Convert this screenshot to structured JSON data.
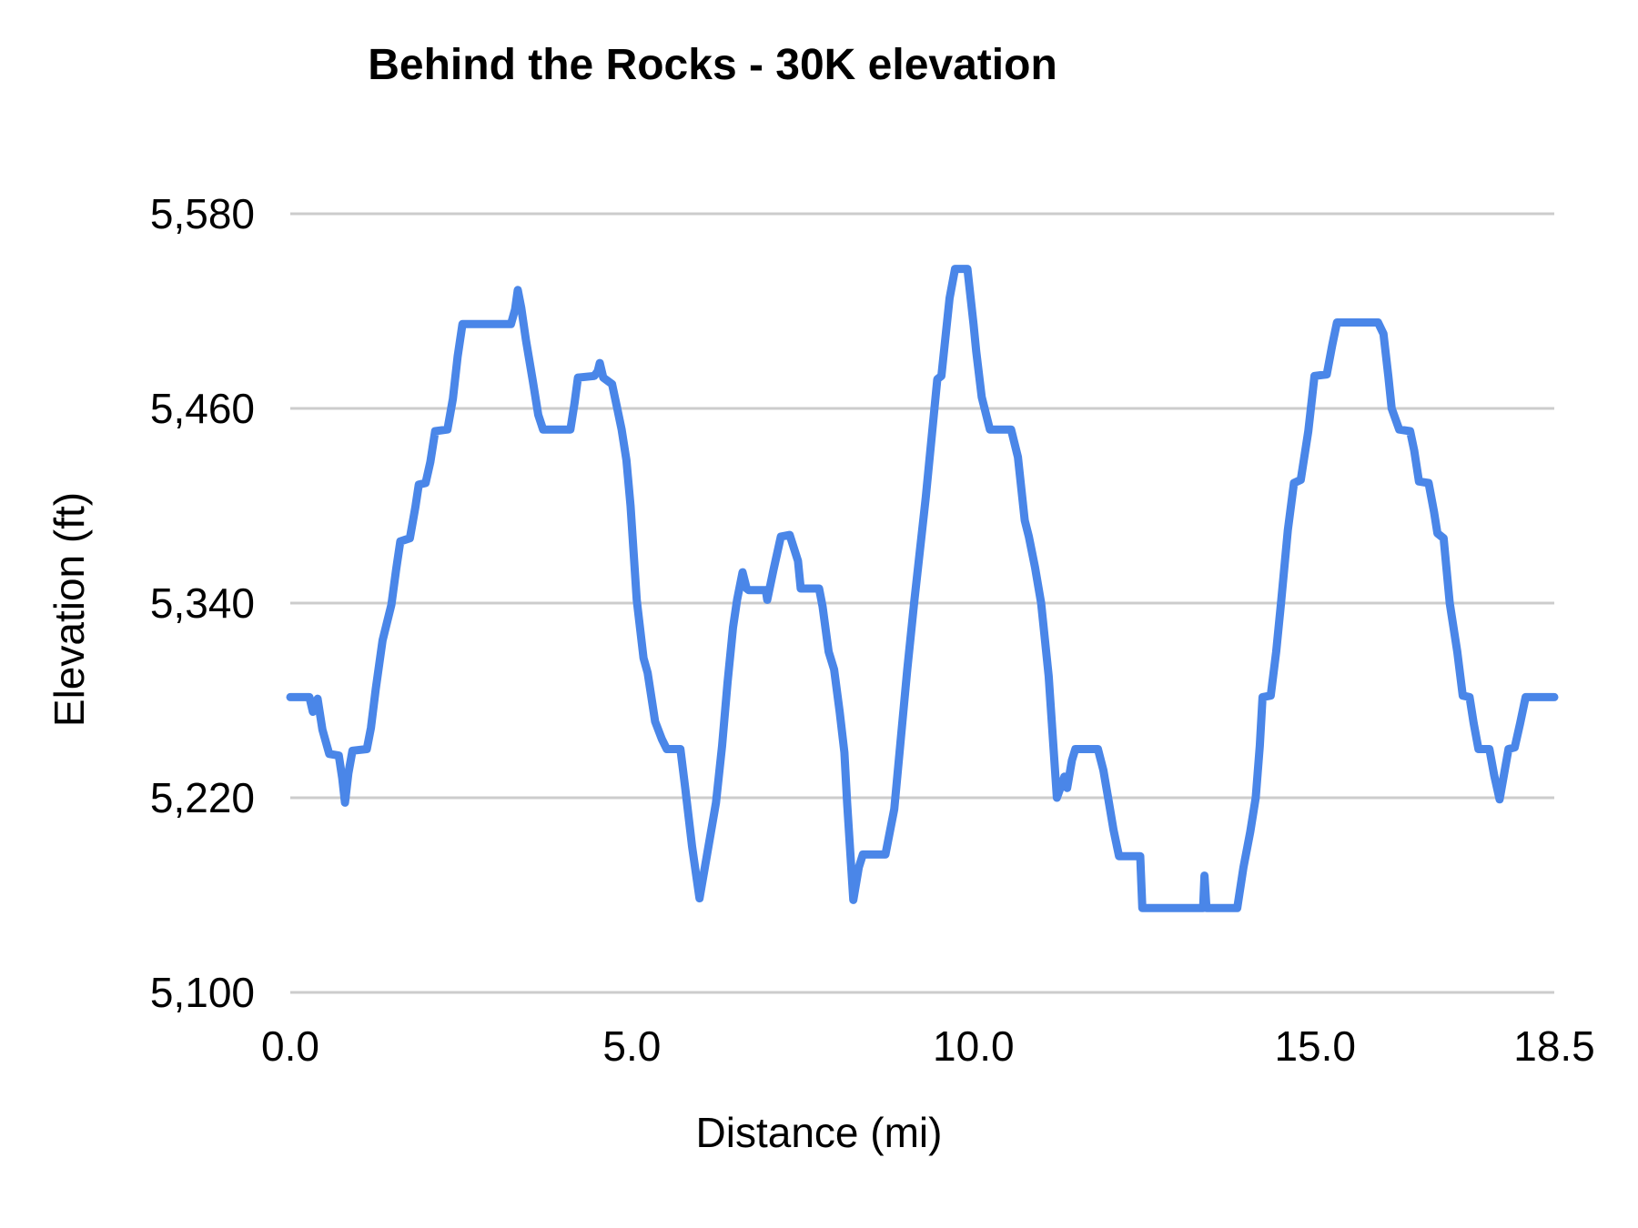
{
  "chart_data": {
    "type": "line",
    "title": "Behind the Rocks - 30K elevation",
    "xlabel": "Distance (mi)",
    "ylabel": "Elevation (ft)",
    "xlim": [
      0.0,
      18.5
    ],
    "ylim": [
      5100,
      5580
    ],
    "grid": "horizontal-only",
    "legend": "none",
    "background_color": "#ffffff",
    "gridline_color": "#cccccc",
    "text_color": "#000000",
    "series_color": "#4a86e8",
    "x_ticks": [
      {
        "value": 0.0,
        "label": "0.0"
      },
      {
        "value": 5.0,
        "label": "5.0"
      },
      {
        "value": 10.0,
        "label": "10.0"
      },
      {
        "value": 15.0,
        "label": "15.0"
      },
      {
        "value": 18.5,
        "label": "18.5"
      }
    ],
    "y_ticks": [
      {
        "value": 5100,
        "label": "5,100"
      },
      {
        "value": 5220,
        "label": "5,220"
      },
      {
        "value": 5340,
        "label": "5,340"
      },
      {
        "value": 5460,
        "label": "5,460"
      },
      {
        "value": 5580,
        "label": "5,580"
      }
    ],
    "series": [
      {
        "name": "Elevation",
        "points": [
          [
            0.0,
            5282
          ],
          [
            0.28,
            5282
          ],
          [
            0.33,
            5273
          ],
          [
            0.4,
            5281
          ],
          [
            0.47,
            5262
          ],
          [
            0.57,
            5247
          ],
          [
            0.71,
            5246
          ],
          [
            0.76,
            5232
          ],
          [
            0.8,
            5217
          ],
          [
            0.85,
            5235
          ],
          [
            0.91,
            5249
          ],
          [
            1.12,
            5250
          ],
          [
            1.18,
            5263
          ],
          [
            1.25,
            5287
          ],
          [
            1.35,
            5317
          ],
          [
            1.48,
            5339
          ],
          [
            1.55,
            5361
          ],
          [
            1.61,
            5378
          ],
          [
            1.75,
            5380
          ],
          [
            1.83,
            5399
          ],
          [
            1.88,
            5413
          ],
          [
            1.98,
            5414
          ],
          [
            2.05,
            5427
          ],
          [
            2.12,
            5446
          ],
          [
            2.3,
            5447
          ],
          [
            2.38,
            5466
          ],
          [
            2.45,
            5492
          ],
          [
            2.52,
            5512
          ],
          [
            3.23,
            5512
          ],
          [
            3.29,
            5521
          ],
          [
            3.33,
            5533
          ],
          [
            3.38,
            5522
          ],
          [
            3.45,
            5502
          ],
          [
            3.55,
            5477
          ],
          [
            3.63,
            5456
          ],
          [
            3.7,
            5447
          ],
          [
            4.1,
            5447
          ],
          [
            4.16,
            5463
          ],
          [
            4.21,
            5479
          ],
          [
            4.45,
            5480
          ],
          [
            4.5,
            5483
          ],
          [
            4.53,
            5488
          ],
          [
            4.58,
            5479
          ],
          [
            4.71,
            5475
          ],
          [
            4.78,
            5461
          ],
          [
            4.85,
            5447
          ],
          [
            4.92,
            5428
          ],
          [
            4.98,
            5400
          ],
          [
            5.07,
            5342
          ],
          [
            5.17,
            5306
          ],
          [
            5.23,
            5297
          ],
          [
            5.34,
            5267
          ],
          [
            5.44,
            5256
          ],
          [
            5.51,
            5250
          ],
          [
            5.71,
            5250
          ],
          [
            5.78,
            5226
          ],
          [
            5.88,
            5190
          ],
          [
            5.99,
            5158
          ],
          [
            6.1,
            5185
          ],
          [
            6.23,
            5217
          ],
          [
            6.32,
            5252
          ],
          [
            6.4,
            5291
          ],
          [
            6.48,
            5325
          ],
          [
            6.54,
            5342
          ],
          [
            6.62,
            5359
          ],
          [
            6.68,
            5349
          ],
          [
            6.71,
            5348
          ],
          [
            6.96,
            5348
          ],
          [
            6.98,
            5342
          ],
          [
            7.07,
            5360
          ],
          [
            7.18,
            5381
          ],
          [
            7.31,
            5382
          ],
          [
            7.43,
            5366
          ],
          [
            7.47,
            5349
          ],
          [
            7.74,
            5349
          ],
          [
            7.79,
            5338
          ],
          [
            7.88,
            5310
          ],
          [
            7.96,
            5299
          ],
          [
            8.04,
            5273
          ],
          [
            8.11,
            5248
          ],
          [
            8.15,
            5217
          ],
          [
            8.24,
            5157
          ],
          [
            8.32,
            5177
          ],
          [
            8.38,
            5185
          ],
          [
            8.71,
            5185
          ],
          [
            8.84,
            5213
          ],
          [
            8.93,
            5254
          ],
          [
            9.03,
            5299
          ],
          [
            9.13,
            5340
          ],
          [
            9.3,
            5405
          ],
          [
            9.47,
            5478
          ],
          [
            9.53,
            5480
          ],
          [
            9.65,
            5528
          ],
          [
            9.73,
            5546
          ],
          [
            9.91,
            5546
          ],
          [
            10.0,
            5512
          ],
          [
            10.04,
            5495
          ],
          [
            10.12,
            5467
          ],
          [
            10.24,
            5447
          ],
          [
            10.55,
            5447
          ],
          [
            10.65,
            5430
          ],
          [
            10.75,
            5391
          ],
          [
            10.81,
            5381
          ],
          [
            10.9,
            5362
          ],
          [
            10.99,
            5340
          ],
          [
            11.1,
            5295
          ],
          [
            11.22,
            5220
          ],
          [
            11.33,
            5233
          ],
          [
            11.37,
            5226
          ],
          [
            11.44,
            5243
          ],
          [
            11.49,
            5250
          ],
          [
            11.82,
            5250
          ],
          [
            11.9,
            5237
          ],
          [
            11.97,
            5220
          ],
          [
            12.05,
            5200
          ],
          [
            12.13,
            5184
          ],
          [
            12.44,
            5184
          ],
          [
            12.47,
            5152
          ],
          [
            13.36,
            5152
          ],
          [
            13.38,
            5172
          ],
          [
            13.41,
            5152
          ],
          [
            13.86,
            5152
          ],
          [
            13.95,
            5177
          ],
          [
            14.05,
            5199
          ],
          [
            14.13,
            5220
          ],
          [
            14.19,
            5252
          ],
          [
            14.23,
            5282
          ],
          [
            14.35,
            5283
          ],
          [
            14.43,
            5310
          ],
          [
            14.5,
            5340
          ],
          [
            14.6,
            5385
          ],
          [
            14.69,
            5414
          ],
          [
            14.79,
            5416
          ],
          [
            14.9,
            5446
          ],
          [
            14.99,
            5480
          ],
          [
            15.17,
            5481
          ],
          [
            15.25,
            5499
          ],
          [
            15.32,
            5513
          ],
          [
            15.92,
            5513
          ],
          [
            16.0,
            5506
          ],
          [
            16.07,
            5480
          ],
          [
            16.12,
            5460
          ],
          [
            16.23,
            5447
          ],
          [
            16.39,
            5446
          ],
          [
            16.45,
            5434
          ],
          [
            16.52,
            5415
          ],
          [
            16.66,
            5414
          ],
          [
            16.74,
            5396
          ],
          [
            16.79,
            5383
          ],
          [
            16.88,
            5380
          ],
          [
            16.97,
            5340
          ],
          [
            17.08,
            5310
          ],
          [
            17.16,
            5283
          ],
          [
            17.26,
            5282
          ],
          [
            17.32,
            5266
          ],
          [
            17.39,
            5250
          ],
          [
            17.55,
            5250
          ],
          [
            17.62,
            5234
          ],
          [
            17.7,
            5219
          ],
          [
            17.78,
            5238
          ],
          [
            17.83,
            5250
          ],
          [
            17.92,
            5251
          ],
          [
            18.0,
            5266
          ],
          [
            18.08,
            5282
          ],
          [
            18.5,
            5282
          ]
        ]
      }
    ]
  }
}
